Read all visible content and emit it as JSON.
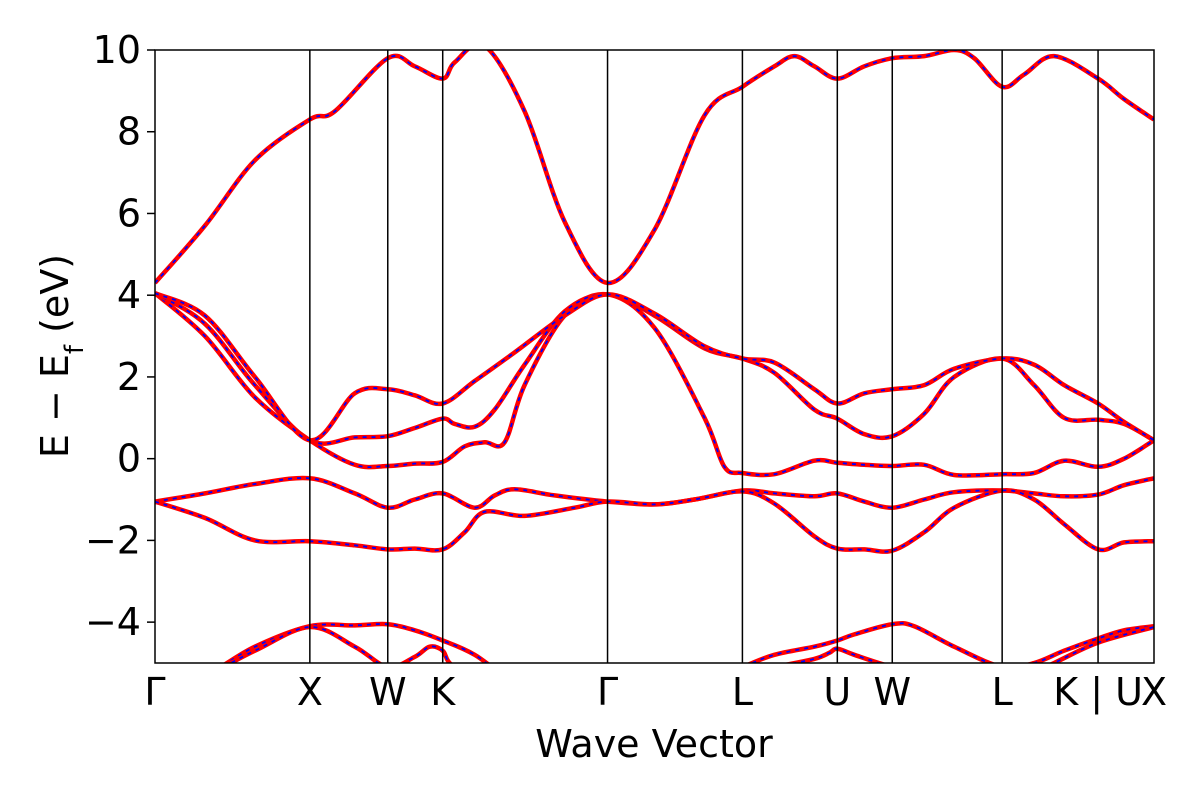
{
  "chart_data": {
    "type": "line",
    "title": "",
    "xlabel": "Wave Vector",
    "ylabel": {
      "main": "E − E",
      "sub": "f",
      "unit": " (eV)"
    },
    "ylim": [
      -5,
      10
    ],
    "xlim": [
      0,
      1
    ],
    "yticks": [
      {
        "value": -4,
        "label": "−4"
      },
      {
        "value": -2,
        "label": "−2"
      },
      {
        "value": 0,
        "label": "0"
      },
      {
        "value": 2,
        "label": "2"
      },
      {
        "value": 4,
        "label": "4"
      },
      {
        "value": 6,
        "label": "6"
      },
      {
        "value": 8,
        "label": "8"
      },
      {
        "value": 10,
        "label": "10"
      }
    ],
    "kpoints": [
      {
        "label": "Γ",
        "position": 0.0
      },
      {
        "label": "X",
        "position": 0.155
      },
      {
        "label": "W",
        "position": 0.233
      },
      {
        "label": "K",
        "position": 0.288
      },
      {
        "label": "Γ",
        "position": 0.453
      },
      {
        "label": "L",
        "position": 0.588
      },
      {
        "label": "U",
        "position": 0.683
      },
      {
        "label": "W",
        "position": 0.738
      },
      {
        "label": "L",
        "position": 0.848
      },
      {
        "label": "K | U",
        "position": 0.944
      },
      {
        "label": "X",
        "position": 1.0
      }
    ],
    "series_style": {
      "solid_color": "#ff0000",
      "dashed_color": "#0000ff"
    },
    "bands": [
      {
        "name": "",
        "points": [
          [
            0,
            -5.6
          ],
          [
            0.05,
            -5.3
          ],
          [
            0.1,
            -4.6
          ],
          [
            0.155,
            -4.1
          ],
          [
            0.2,
            -4.08
          ],
          [
            0.233,
            -4.05
          ],
          [
            0.26,
            -4.2
          ],
          [
            0.288,
            -4.45
          ],
          [
            0.32,
            -4.8
          ],
          [
            0.37,
            -5.6
          ],
          [
            0.453,
            -6.2
          ],
          [
            0.52,
            -5.8
          ],
          [
            0.588,
            -5.1
          ],
          [
            0.62,
            -4.8
          ],
          [
            0.66,
            -4.6
          ],
          [
            0.683,
            -4.45
          ],
          [
            0.7,
            -4.3
          ],
          [
            0.738,
            -4.05
          ],
          [
            0.76,
            -4.1
          ],
          [
            0.8,
            -4.6
          ],
          [
            0.848,
            -5.1
          ],
          [
            0.88,
            -5.0
          ],
          [
            0.91,
            -4.7
          ],
          [
            0.944,
            -4.4
          ],
          [
            0.97,
            -4.2
          ],
          [
            1.0,
            -4.1
          ]
        ]
      },
      {
        "name": "",
        "points": [
          [
            0,
            -5.6
          ],
          [
            0.05,
            -5.3
          ],
          [
            0.1,
            -4.7
          ],
          [
            0.155,
            -4.12
          ],
          [
            0.2,
            -4.6
          ],
          [
            0.233,
            -5.1
          ],
          [
            0.26,
            -4.85
          ],
          [
            0.275,
            -4.6
          ],
          [
            0.288,
            -4.7
          ],
          [
            0.3,
            -5.1
          ],
          [
            0.35,
            -5.6
          ],
          [
            0.453,
            -6.3
          ],
          [
            0.588,
            -5.3
          ],
          [
            0.62,
            -5.1
          ],
          [
            0.66,
            -4.9
          ],
          [
            0.675,
            -4.75
          ],
          [
            0.683,
            -4.65
          ],
          [
            0.7,
            -4.8
          ],
          [
            0.738,
            -5.1
          ],
          [
            0.8,
            -5.5
          ],
          [
            0.848,
            -5.6
          ],
          [
            0.9,
            -5.0
          ],
          [
            0.944,
            -4.5
          ],
          [
            1.0,
            -4.12
          ]
        ]
      },
      {
        "name": "",
        "points": [
          [
            0,
            -1.05
          ],
          [
            0.05,
            -0.85
          ],
          [
            0.1,
            -0.62
          ],
          [
            0.155,
            -0.48
          ],
          [
            0.2,
            -0.85
          ],
          [
            0.233,
            -1.2
          ],
          [
            0.26,
            -1.0
          ],
          [
            0.288,
            -0.85
          ],
          [
            0.32,
            -1.2
          ],
          [
            0.34,
            -0.9
          ],
          [
            0.36,
            -0.75
          ],
          [
            0.4,
            -0.9
          ],
          [
            0.453,
            -1.05
          ],
          [
            0.5,
            -1.12
          ],
          [
            0.54,
            -1.0
          ],
          [
            0.588,
            -0.78
          ],
          [
            0.62,
            -0.85
          ],
          [
            0.66,
            -0.92
          ],
          [
            0.683,
            -0.85
          ],
          [
            0.71,
            -1.05
          ],
          [
            0.738,
            -1.2
          ],
          [
            0.77,
            -1.0
          ],
          [
            0.8,
            -0.82
          ],
          [
            0.848,
            -0.78
          ],
          [
            0.88,
            -0.85
          ],
          [
            0.91,
            -0.92
          ],
          [
            0.944,
            -0.88
          ],
          [
            0.97,
            -0.65
          ],
          [
            1.0,
            -0.48
          ]
        ]
      },
      {
        "name": "",
        "points": [
          [
            0,
            -1.05
          ],
          [
            0.05,
            -1.45
          ],
          [
            0.1,
            -2.0
          ],
          [
            0.155,
            -2.02
          ],
          [
            0.2,
            -2.12
          ],
          [
            0.233,
            -2.22
          ],
          [
            0.26,
            -2.2
          ],
          [
            0.288,
            -2.22
          ],
          [
            0.31,
            -1.8
          ],
          [
            0.33,
            -1.3
          ],
          [
            0.37,
            -1.4
          ],
          [
            0.42,
            -1.2
          ],
          [
            0.453,
            -1.05
          ],
          [
            0.5,
            -1.12
          ],
          [
            0.54,
            -1.0
          ],
          [
            0.588,
            -0.8
          ],
          [
            0.62,
            -1.1
          ],
          [
            0.66,
            -1.9
          ],
          [
            0.683,
            -2.2
          ],
          [
            0.71,
            -2.22
          ],
          [
            0.738,
            -2.25
          ],
          [
            0.77,
            -1.8
          ],
          [
            0.8,
            -1.2
          ],
          [
            0.848,
            -0.78
          ],
          [
            0.88,
            -1.0
          ],
          [
            0.91,
            -1.6
          ],
          [
            0.944,
            -2.22
          ],
          [
            0.97,
            -2.05
          ],
          [
            1.0,
            -2.02
          ]
        ]
      },
      {
        "name": "",
        "points": [
          [
            0,
            4.05
          ],
          [
            0.05,
            3.0
          ],
          [
            0.1,
            1.5
          ],
          [
            0.155,
            0.45
          ],
          [
            0.2,
            -0.15
          ],
          [
            0.233,
            -0.18
          ],
          [
            0.26,
            -0.12
          ],
          [
            0.288,
            -0.08
          ],
          [
            0.31,
            0.3
          ],
          [
            0.33,
            0.4
          ],
          [
            0.35,
            0.4
          ],
          [
            0.37,
            1.8
          ],
          [
            0.41,
            3.5
          ],
          [
            0.453,
            4.02
          ],
          [
            0.5,
            3.2
          ],
          [
            0.55,
            1.0
          ],
          [
            0.57,
            -0.2
          ],
          [
            0.588,
            -0.35
          ],
          [
            0.62,
            -0.38
          ],
          [
            0.66,
            -0.05
          ],
          [
            0.683,
            -0.1
          ],
          [
            0.71,
            -0.15
          ],
          [
            0.738,
            -0.18
          ],
          [
            0.77,
            -0.15
          ],
          [
            0.8,
            -0.4
          ],
          [
            0.848,
            -0.38
          ],
          [
            0.88,
            -0.35
          ],
          [
            0.91,
            -0.05
          ],
          [
            0.944,
            -0.2
          ],
          [
            0.97,
            0.0
          ],
          [
            1.0,
            0.45
          ]
        ]
      },
      {
        "name": "",
        "points": [
          [
            0,
            4.05
          ],
          [
            0.05,
            3.3
          ],
          [
            0.1,
            1.8
          ],
          [
            0.155,
            0.45
          ],
          [
            0.2,
            0.52
          ],
          [
            0.233,
            0.55
          ],
          [
            0.26,
            0.75
          ],
          [
            0.288,
            0.98
          ],
          [
            0.3,
            0.85
          ],
          [
            0.32,
            0.78
          ],
          [
            0.34,
            1.2
          ],
          [
            0.37,
            2.3
          ],
          [
            0.41,
            3.6
          ],
          [
            0.453,
            4.02
          ],
          [
            0.5,
            3.5
          ],
          [
            0.55,
            2.7
          ],
          [
            0.588,
            2.45
          ],
          [
            0.62,
            2.1
          ],
          [
            0.66,
            1.2
          ],
          [
            0.683,
            0.98
          ],
          [
            0.71,
            0.6
          ],
          [
            0.738,
            0.55
          ],
          [
            0.77,
            1.1
          ],
          [
            0.8,
            2.0
          ],
          [
            0.848,
            2.45
          ],
          [
            0.88,
            1.8
          ],
          [
            0.91,
            1.0
          ],
          [
            0.944,
            0.95
          ],
          [
            0.97,
            0.85
          ],
          [
            1.0,
            0.45
          ]
        ]
      },
      {
        "name": "",
        "points": [
          [
            0,
            4.05
          ],
          [
            0.05,
            3.5
          ],
          [
            0.1,
            2.0
          ],
          [
            0.155,
            0.45
          ],
          [
            0.2,
            1.6
          ],
          [
            0.233,
            1.7
          ],
          [
            0.26,
            1.55
          ],
          [
            0.288,
            1.35
          ],
          [
            0.32,
            1.9
          ],
          [
            0.36,
            2.6
          ],
          [
            0.41,
            3.5
          ],
          [
            0.453,
            4.02
          ],
          [
            0.5,
            3.55
          ],
          [
            0.55,
            2.75
          ],
          [
            0.588,
            2.45
          ],
          [
            0.62,
            2.35
          ],
          [
            0.66,
            1.7
          ],
          [
            0.683,
            1.35
          ],
          [
            0.71,
            1.6
          ],
          [
            0.738,
            1.7
          ],
          [
            0.77,
            1.8
          ],
          [
            0.8,
            2.2
          ],
          [
            0.848,
            2.45
          ],
          [
            0.88,
            2.3
          ],
          [
            0.91,
            1.8
          ],
          [
            0.944,
            1.35
          ],
          [
            0.97,
            0.9
          ],
          [
            1.0,
            0.45
          ]
        ]
      },
      {
        "name": "",
        "points": [
          [
            0,
            4.3
          ],
          [
            0.05,
            5.7
          ],
          [
            0.1,
            7.3
          ],
          [
            0.155,
            8.3
          ],
          [
            0.18,
            8.5
          ],
          [
            0.233,
            9.8
          ],
          [
            0.26,
            9.6
          ],
          [
            0.288,
            9.3
          ],
          [
            0.3,
            9.7
          ],
          [
            0.33,
            10.1
          ],
          [
            0.37,
            8.5
          ],
          [
            0.41,
            5.8
          ],
          [
            0.453,
            4.3
          ],
          [
            0.5,
            5.6
          ],
          [
            0.55,
            8.4
          ],
          [
            0.588,
            9.1
          ],
          [
            0.62,
            9.6
          ],
          [
            0.64,
            9.85
          ],
          [
            0.66,
            9.6
          ],
          [
            0.683,
            9.3
          ],
          [
            0.71,
            9.6
          ],
          [
            0.738,
            9.8
          ],
          [
            0.77,
            9.85
          ],
          [
            0.8,
            10.0
          ],
          [
            0.82,
            9.8
          ],
          [
            0.848,
            9.1
          ],
          [
            0.87,
            9.4
          ],
          [
            0.9,
            9.85
          ],
          [
            0.944,
            9.3
          ],
          [
            0.97,
            8.8
          ],
          [
            1.0,
            8.3
          ]
        ]
      }
    ]
  }
}
